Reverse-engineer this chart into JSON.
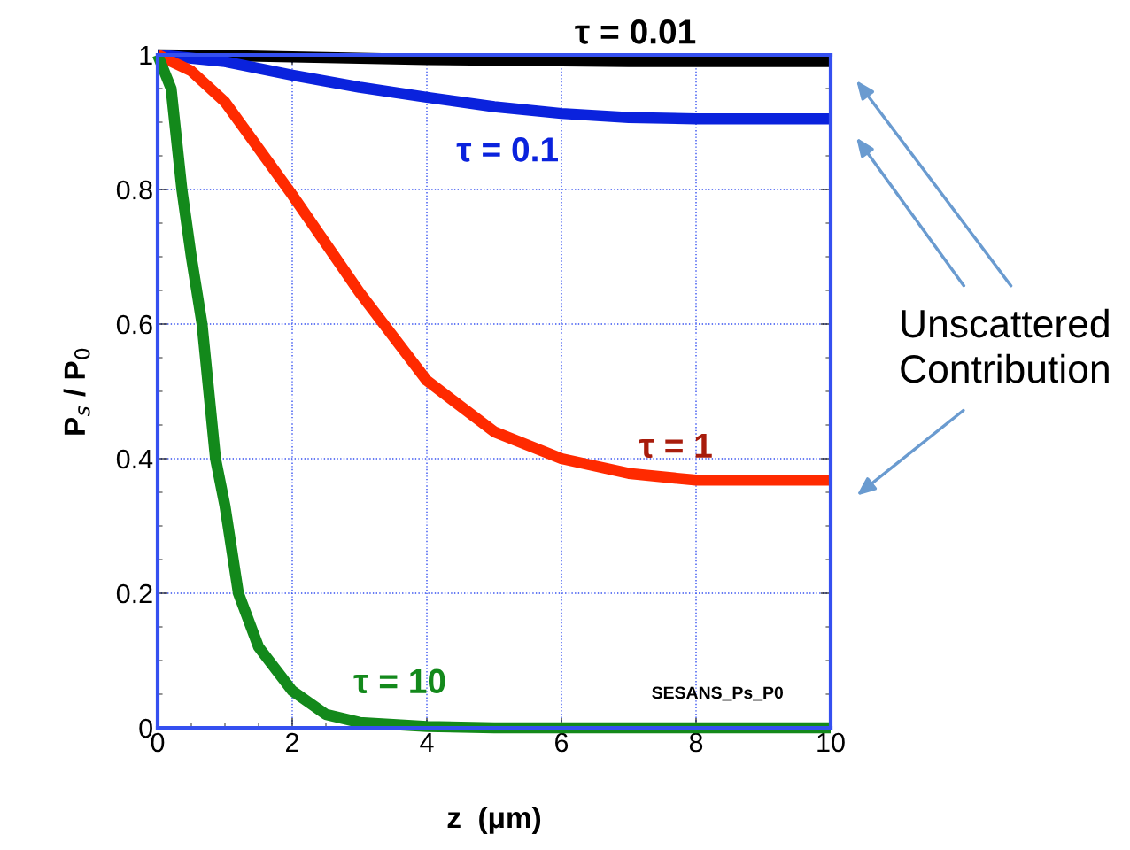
{
  "chart_data": {
    "type": "line",
    "xlabel": "z  (μm)",
    "ylabel": "P$_{s}$ / P$_{0}$",
    "xlim": [
      0,
      10
    ],
    "ylim": [
      0,
      1
    ],
    "xticks": [
      0,
      2,
      4,
      6,
      8,
      10
    ],
    "yticks": [
      0,
      0.2,
      0.4,
      0.6,
      0.8,
      1
    ],
    "grid": true,
    "line_style": "solid",
    "marker": "none",
    "series": [
      {
        "name": "τ = 0.01",
        "color": "#000000",
        "x": [
          0,
          1,
          2,
          3,
          4,
          5,
          6,
          7,
          8,
          10
        ],
        "values": [
          1,
          0.999,
          0.997,
          0.995,
          0.993,
          0.992,
          0.991,
          0.99,
          0.99,
          0.99
        ]
      },
      {
        "name": "τ = 0.1",
        "color": "#0a22dd",
        "x": [
          0,
          0.5,
          1,
          2,
          3,
          4,
          5,
          6,
          7,
          8,
          10
        ],
        "values": [
          1,
          0.995,
          0.99,
          0.97,
          0.952,
          0.937,
          0.923,
          0.913,
          0.907,
          0.905,
          0.905
        ]
      },
      {
        "name": "τ = 1",
        "color": "#ff2a00",
        "x": [
          0,
          0.5,
          1,
          2,
          3,
          4,
          5,
          6,
          7,
          8,
          10
        ],
        "values": [
          1,
          0.976,
          0.93,
          0.792,
          0.647,
          0.516,
          0.44,
          0.4,
          0.378,
          0.368,
          0.368
        ]
      },
      {
        "name": "τ = 10",
        "color": "#13891b",
        "x": [
          0,
          0.2,
          0.36,
          0.5,
          0.66,
          0.86,
          1,
          1.2,
          1.5,
          2,
          2.5,
          3,
          4,
          5,
          10
        ],
        "values": [
          1,
          0.95,
          0.8,
          0.7,
          0.6,
          0.4,
          0.33,
          0.2,
          0.12,
          0.055,
          0.02,
          0.008,
          0.002,
          0,
          0
        ]
      }
    ],
    "annotations": [
      "SESANS_Ps_P0",
      "Unscattered\nContribution"
    ]
  }
}
